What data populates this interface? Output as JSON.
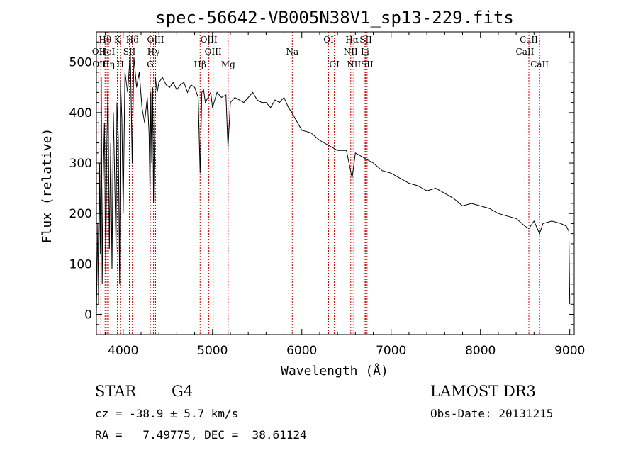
{
  "chart_data": {
    "type": "line",
    "title": "spec-56642-VB005N38V1_sp13-229.fits",
    "xlabel": "Wavelength (Å)",
    "ylabel": "Flux (relative)",
    "xlim": [
      3700,
      9050
    ],
    "ylim": [
      -40,
      560
    ],
    "xticks": [
      4000,
      5000,
      6000,
      7000,
      8000,
      9000
    ],
    "yticks": [
      0,
      100,
      200,
      300,
      400,
      500
    ],
    "grid": false,
    "legend": "none",
    "series": [
      {
        "color": "#000000",
        "x": [
          3700,
          3715,
          3725,
          3735,
          3745,
          3755,
          3765,
          3775,
          3790,
          3805,
          3815,
          3830,
          3845,
          3860,
          3875,
          3890,
          3905,
          3920,
          3930,
          3945,
          3960,
          3970,
          3985,
          4000,
          4020,
          4050,
          4080,
          4101,
          4120,
          4150,
          4180,
          4210,
          4240,
          4270,
          4290,
          4300,
          4310,
          4320,
          4330,
          4340,
          4360,
          4380,
          4400,
          4440,
          4480,
          4520,
          4560,
          4600,
          4640,
          4680,
          4720,
          4760,
          4800,
          4840,
          4861,
          4880,
          4900,
          4920,
          4950,
          4980,
          5000,
          5050,
          5100,
          5150,
          5173,
          5200,
          5250,
          5300,
          5350,
          5400,
          5450,
          5500,
          5550,
          5600,
          5650,
          5700,
          5750,
          5800,
          5850,
          5890,
          5920,
          6000,
          6100,
          6200,
          6300,
          6400,
          6500,
          6563,
          6600,
          6700,
          6800,
          6900,
          7000,
          7100,
          7200,
          7300,
          7400,
          7500,
          7600,
          7700,
          7800,
          7900,
          8000,
          8100,
          8200,
          8300,
          8400,
          8498,
          8542,
          8600,
          8662,
          8700,
          8800,
          8900,
          8960,
          8990,
          9000
        ],
        "y": [
          0,
          180,
          20,
          300,
          120,
          470,
          60,
          250,
          380,
          80,
          320,
          450,
          130,
          340,
          90,
          400,
          270,
          130,
          420,
          350,
          60,
          460,
          390,
          200,
          480,
          440,
          520,
          300,
          510,
          450,
          480,
          410,
          380,
          430,
          360,
          240,
          440,
          300,
          450,
          220,
          470,
          440,
          460,
          470,
          455,
          450,
          460,
          445,
          455,
          460,
          440,
          455,
          450,
          430,
          280,
          440,
          445,
          420,
          430,
          440,
          410,
          440,
          430,
          435,
          330,
          420,
          430,
          425,
          420,
          430,
          440,
          425,
          420,
          420,
          410,
          425,
          420,
          430,
          410,
          400,
          390,
          365,
          360,
          345,
          335,
          325,
          325,
          270,
          320,
          310,
          300,
          285,
          280,
          270,
          260,
          255,
          245,
          250,
          240,
          230,
          215,
          220,
          215,
          210,
          200,
          195,
          190,
          175,
          170,
          185,
          160,
          180,
          185,
          180,
          175,
          165,
          20
        ]
      }
    ],
    "line_markers": [
      {
        "label": "Hθ",
        "x": 3797,
        "row": 0
      },
      {
        "label": "OII",
        "x": 3727,
        "row": 1
      },
      {
        "label": "OIII",
        "x": 3750,
        "row": 2
      },
      {
        "label": "HeI",
        "x": 3820,
        "row": 1
      },
      {
        "label": "Hη",
        "x": 3835,
        "row": 2
      },
      {
        "label": "K",
        "x": 3934,
        "row": 0
      },
      {
        "label": "H",
        "x": 3968,
        "row": 2
      },
      {
        "label": "SII",
        "x": 4069,
        "row": 1
      },
      {
        "label": "Hδ",
        "x": 4102,
        "row": 0
      },
      {
        "label": "OIII",
        "x": 4363,
        "row": 0
      },
      {
        "label": "Hγ",
        "x": 4340,
        "row": 1
      },
      {
        "label": "G",
        "x": 4304,
        "row": 2
      },
      {
        "label": "Hβ",
        "x": 4861,
        "row": 2
      },
      {
        "label": "OIII",
        "x": 4959,
        "row": 0
      },
      {
        "label": "OIII",
        "x": 5007,
        "row": 1
      },
      {
        "label": "Mg",
        "x": 5175,
        "row": 2
      },
      {
        "label": "Na",
        "x": 5893,
        "row": 1
      },
      {
        "label": "OI",
        "x": 6300,
        "row": 0
      },
      {
        "label": "OI",
        "x": 6364,
        "row": 2
      },
      {
        "label": "Hα",
        "x": 6563,
        "row": 0
      },
      {
        "label": "NII",
        "x": 6548,
        "row": 1
      },
      {
        "label": "NII",
        "x": 6583,
        "row": 2
      },
      {
        "label": "Li",
        "x": 6708,
        "row": 1
      },
      {
        "label": "SII",
        "x": 6717,
        "row": 0
      },
      {
        "label": "SII",
        "x": 6731,
        "row": 2
      },
      {
        "label": "CaII",
        "x": 8542,
        "row": 0
      },
      {
        "label": "CaII",
        "x": 8498,
        "row": 1
      },
      {
        "label": "CaII",
        "x": 8662,
        "row": 2
      }
    ]
  },
  "info": {
    "class_label": "STAR",
    "subclass_label": "G4",
    "survey_label": "LAMOST DR3",
    "cz_text": "cz = -38.9 ± 5.7 km/s",
    "obs_date_text": "Obs-Date: 20131215",
    "radec_text": "RA =   7.49775, DEC =  38.61124"
  }
}
